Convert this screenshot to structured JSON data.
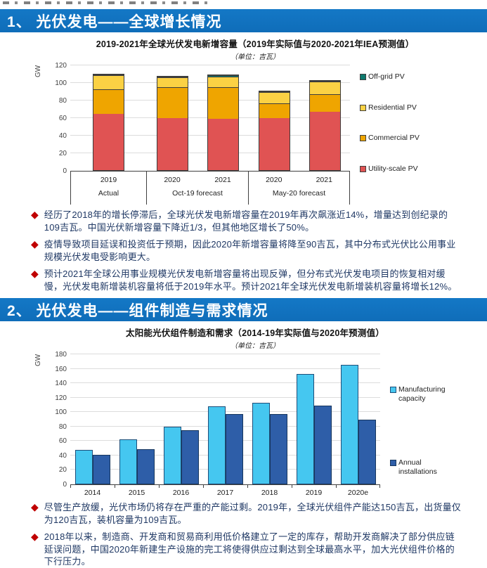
{
  "sections": [
    {
      "header": "1、 光伏发电——全球增长情况",
      "bullets": [
        "经历了2018年的增长停滞后，全球光伏发电新增容量在2019年再次飙涨近14%，增量达到创纪录的109吉瓦。中国光伏新增容量下降近1/3，但其他地区增长了50%。",
        "疫情导致项目延误和投资低于预期，因此2020年新增容量将降至90吉瓦，其中分布式光伏比公用事业规模光伏发电受影响更大。",
        "预计2021年全球公用事业规模光伏发电新增容量将出现反弹，但分布式光伏发电项目的恢复相对缓慢，光伏发电新增装机容量将低于2019年水平。预计2021年全球光伏发电新增装机容量将增长12%。"
      ]
    },
    {
      "header": "2、 光伏发电——组件制造与需求情况",
      "bullets": [
        "尽管生产放缓，光伏市场仍将存在严重的产能过剩。2019年，全球光伏组件产能达150吉瓦，出货量仅为120吉瓦，装机容量为109吉瓦。",
        "2018年以来，制造商、开发商和贸易商利用低价格建立了一定的库存，帮助开发商解决了部分供应链延误问题，中国2020年新建生产设施的完工将使得供应过剩达到全球最高水平，加大光伏组件价格的下行压力。"
      ]
    }
  ],
  "chart_data": [
    {
      "type": "bar",
      "variant": "stacked",
      "title": "2019-2021年全球光伏发电新增容量（2019年实际值与2020-2021年IEA预测值）",
      "subtitle": "（单位：吉瓦）",
      "ylabel": "GW",
      "ylim": [
        0,
        120
      ],
      "ytick_step": 20,
      "grid": true,
      "legend_position": "right",
      "categories": [
        "2019",
        "2020",
        "2021",
        "2020",
        "2021"
      ],
      "groups": [
        {
          "label": "Actual",
          "span": 1
        },
        {
          "label": "Oct-19 forecast",
          "span": 2
        },
        {
          "label": "May-20 forecast",
          "span": 2
        }
      ],
      "series": [
        {
          "name": "Utility-scale PV",
          "color": "#E05353",
          "values": [
            64,
            59,
            58,
            59,
            66
          ]
        },
        {
          "name": "Commercial PV",
          "color": "#EFA500",
          "values": [
            28,
            35,
            36,
            17,
            20
          ]
        },
        {
          "name": "Residential PV",
          "color": "#FBD144",
          "values": [
            16,
            11,
            12,
            13,
            14
          ]
        },
        {
          "name": "Off-grid PV",
          "color": "#0E7A6E",
          "values": [
            1,
            1,
            1.5,
            1,
            1
          ]
        }
      ]
    },
    {
      "type": "bar",
      "variant": "grouped",
      "title": "太阳能光伏组件制造和需求（2014-19年实际值与2020年预测值）",
      "subtitle": "（单位：吉瓦）",
      "ylabel": "GW",
      "ylim": [
        0,
        180
      ],
      "ytick_step": 20,
      "grid": true,
      "legend_position": "right",
      "categories": [
        "2014",
        "2015",
        "2016",
        "2017",
        "2018",
        "2019",
        "2020e"
      ],
      "series": [
        {
          "name": "Manufacturing capacity",
          "color": "#45C7F0",
          "values": [
            48,
            62,
            80,
            108,
            113,
            153,
            165
          ]
        },
        {
          "name": "Annual installations",
          "color": "#2E5EA8",
          "values": [
            41,
            49,
            75,
            97,
            97,
            109,
            90
          ]
        }
      ]
    }
  ]
}
